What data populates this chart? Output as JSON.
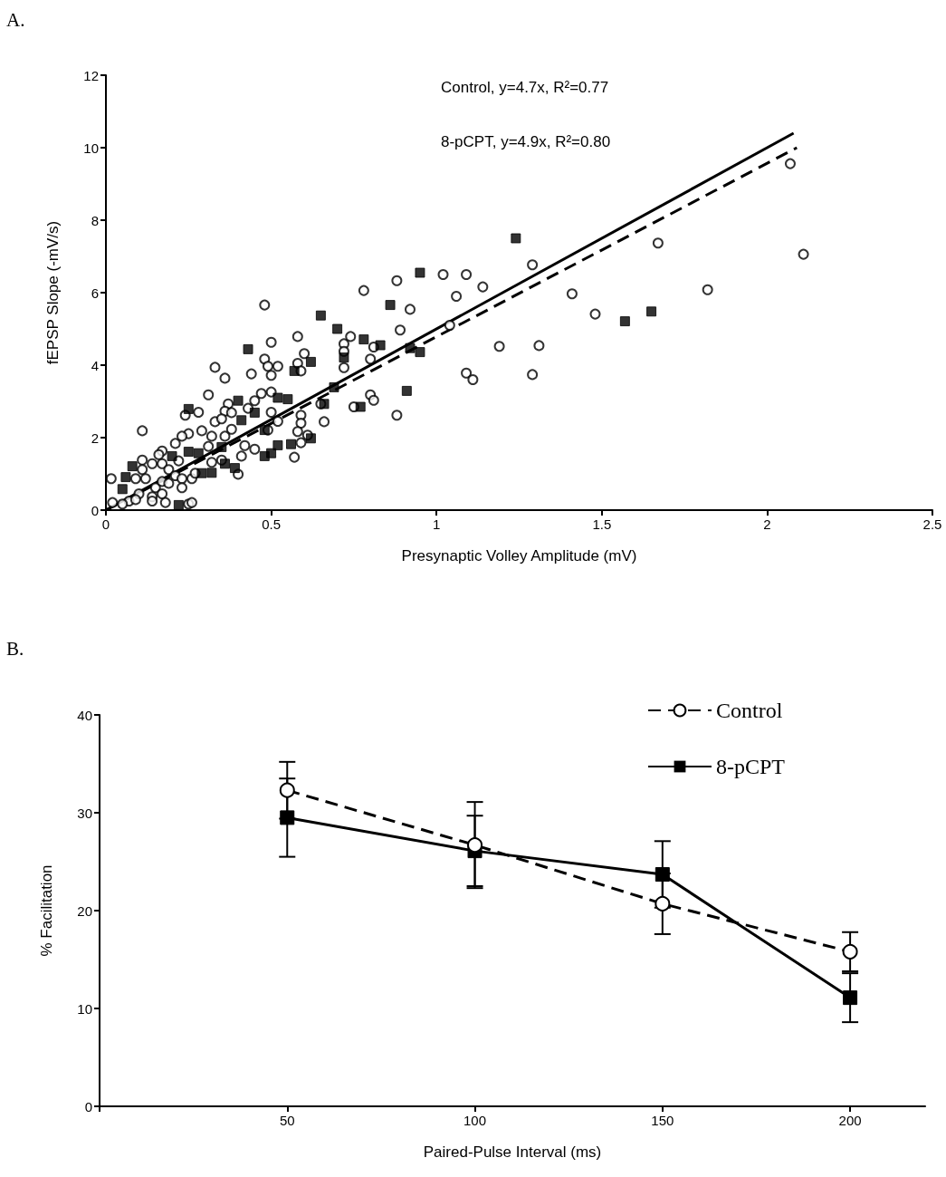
{
  "chart_data": [
    {
      "type": "scatter",
      "title": "A.",
      "xlabel": "Presynaptic Volley Amplitude (mV)",
      "ylabel": "fEPSP Slope (-mV/s)",
      "xlim": [
        0,
        2.5
      ],
      "xticks": [
        0,
        0.5,
        1,
        1.5,
        2,
        2.5
      ],
      "ylim": [
        0,
        12
      ],
      "yticks": [
        0,
        2,
        4,
        6,
        8,
        10,
        12
      ],
      "legend": false,
      "annotations": [
        "Control, y=4.7x, R²=0.77",
        "8-pCPT, y=4.9x, R²=0.80"
      ],
      "series": [
        {
          "marker": "circle",
          "color": "#000000",
          "x": [
            0.016,
            0.11,
            0.48,
            0.78,
            0.5,
            0.58,
            0.48,
            0.49,
            0.52,
            0.5,
            0.44,
            0.33,
            0.36,
            0.58,
            0.6,
            0.59,
            0.72,
            0.74,
            0.72,
            0.72,
            0.81,
            0.8,
            0.31,
            0.47,
            0.5,
            0.45,
            0.43,
            0.37,
            0.36,
            0.38,
            0.28,
            0.24,
            0.33,
            0.35,
            0.5,
            0.52,
            0.59,
            0.59,
            0.58,
            0.61,
            0.59,
            0.66,
            0.65,
            0.75,
            0.8,
            0.81,
            0.49,
            0.38,
            0.29,
            0.25,
            0.23,
            0.21,
            0.32,
            0.31,
            0.36,
            0.42,
            0.45,
            0.41,
            0.32,
            0.35,
            0.4,
            0.57,
            0.17,
            0.16,
            0.14,
            0.11,
            0.11,
            0.09,
            0.12,
            0.17,
            0.19,
            0.22,
            0.21,
            0.23,
            0.26,
            0.27,
            0.23,
            0.15,
            0.17,
            0.14,
            0.1,
            0.07,
            0.05,
            0.02,
            0.09,
            0.14,
            0.18,
            0.25,
            0.26,
            0.17,
            0.19,
            2.07,
            2.11,
            1.67,
            1.29,
            0.88,
            1.02,
            1.09,
            1.14,
            1.06,
            0.92,
            0.89,
            1.41,
            1.48,
            1.82,
            1.19,
            1.31,
            1.09,
            1.11,
            1.29,
            0.88,
            1.04
          ],
          "values": [
            0.87,
            2.19,
            5.66,
            6.06,
            4.63,
            4.79,
            4.17,
            3.97,
            3.97,
            3.72,
            3.76,
            3.94,
            3.64,
            4.05,
            4.32,
            3.84,
            4.59,
            4.79,
            4.38,
            3.93,
            4.5,
            4.17,
            3.18,
            3.22,
            3.26,
            3.02,
            2.81,
            2.93,
            2.73,
            2.69,
            2.7,
            2.62,
            2.44,
            2.52,
            2.7,
            2.45,
            2.62,
            2.4,
            2.17,
            2.07,
            1.86,
            2.44,
            2.93,
            2.85,
            3.18,
            3.03,
            2.21,
            2.23,
            2.19,
            2.11,
            2.04,
            1.84,
            2.04,
            1.76,
            2.04,
            1.78,
            1.68,
            1.49,
            1.32,
            1.38,
            0.99,
            1.46,
            1.63,
            1.53,
            1.28,
            1.38,
            1.12,
            0.87,
            0.87,
            1.28,
            1.12,
            1.36,
            0.95,
            0.87,
            0.87,
            1.02,
            0.62,
            0.62,
            0.45,
            0.37,
            0.45,
            0.25,
            0.17,
            0.21,
            0.29,
            0.25,
            0.21,
            0.17,
            0.21,
            0.79,
            0.74,
            9.56,
            7.06,
            7.37,
            6.77,
            6.33,
            6.5,
            6.5,
            6.16,
            5.9,
            5.54,
            4.97,
            5.97,
            5.41,
            6.08,
            4.52,
            4.54,
            3.78,
            3.6,
            3.74,
            2.62,
            5.1
          ]
        },
        {
          "marker": "square",
          "color": "#000000",
          "x": [
            0.08,
            0.06,
            0.05,
            0.25,
            0.25,
            0.28,
            0.2,
            0.29,
            0.32,
            0.4,
            0.43,
            0.41,
            0.45,
            0.48,
            0.36,
            0.39,
            0.52,
            0.56,
            0.5,
            0.48,
            0.62,
            0.55,
            0.52,
            0.66,
            0.65,
            0.7,
            0.78,
            0.62,
            0.57,
            0.69,
            0.77,
            0.83,
            0.22,
            0.35,
            0.72,
            1.24,
            0.95,
            0.86,
            0.95,
            0.92,
            1.57,
            1.65,
            0.91
          ],
          "values": [
            1.21,
            0.91,
            0.58,
            2.79,
            1.61,
            1.57,
            1.49,
            1.02,
            1.03,
            3.02,
            4.44,
            2.48,
            2.69,
            2.21,
            1.28,
            1.16,
            1.79,
            1.82,
            1.57,
            1.49,
            1.98,
            3.06,
            3.1,
            2.93,
            5.37,
            5.0,
            4.71,
            4.09,
            3.84,
            3.39,
            2.85,
            4.55,
            0.14,
            1.74,
            4.21,
            7.5,
            6.55,
            5.66,
            4.36,
            4.47,
            5.21,
            5.48,
            3.29
          ]
        },
        {
          "type": "line",
          "marker": "none",
          "line_style": "dashed",
          "color": "#000000",
          "x": [
            0,
            2.09
          ],
          "values": [
            0,
            10.0
          ]
        },
        {
          "type": "line",
          "marker": "none",
          "line_style": "solid",
          "color": "#000000",
          "x": [
            0,
            2.08
          ],
          "values": [
            0,
            10.4
          ]
        }
      ]
    },
    {
      "type": "line",
      "title": "B.",
      "xlabel": "Paired-Pulse Interval (ms)",
      "ylabel": "% Facilitation",
      "xlim": [
        0,
        220
      ],
      "xticks": [
        {
          "value": 0,
          "label": null
        },
        50,
        100,
        150,
        200
      ],
      "ylim": [
        0,
        40
      ],
      "yticks": [
        0,
        10,
        20,
        30,
        40
      ],
      "legend": "top right",
      "series": [
        {
          "name": "Control",
          "color": "#000000",
          "marker": "circle",
          "line_style": "dashed",
          "x": [
            50,
            100,
            150,
            200
          ],
          "values": [
            32.3,
            26.7,
            20.7,
            15.8
          ],
          "errors": [
            2.9,
            4.4,
            3.1,
            2.0
          ]
        },
        {
          "name": "8-pCPT",
          "color": "#000000",
          "marker": "square",
          "line_style": "solid",
          "x": [
            50,
            100,
            150,
            200
          ],
          "values": [
            29.5,
            26.1,
            23.7,
            11.1
          ],
          "errors": [
            4.0,
            3.6,
            3.4,
            2.5
          ]
        }
      ]
    }
  ]
}
